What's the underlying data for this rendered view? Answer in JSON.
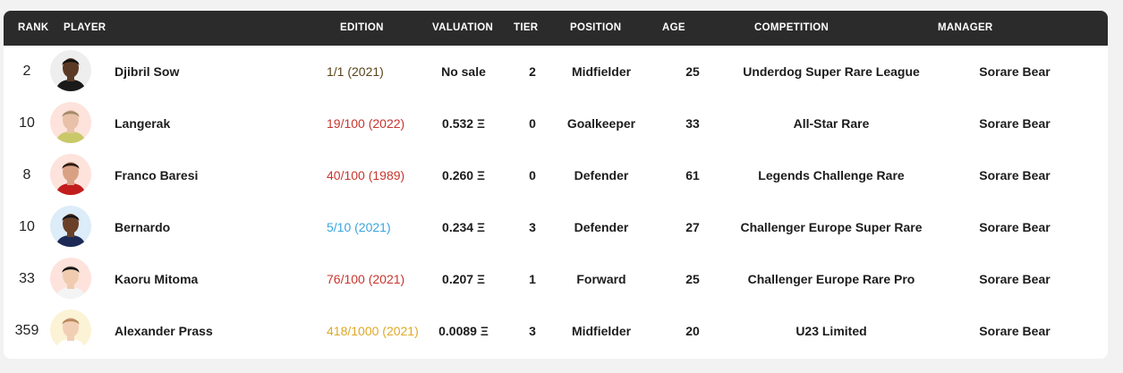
{
  "headers": {
    "rank": "RANK",
    "player": "PLAYER",
    "edition": "EDITION",
    "valuation": "VALUATION",
    "tier": "TIER",
    "position": "POSITION",
    "age": "AGE",
    "competition": "COMPETITION",
    "manager": "MANAGER"
  },
  "colors": {
    "header_bg": "#2b2b2b",
    "edition_unique": "#5a4418",
    "edition_rare": "#c8352e",
    "edition_super_rare": "#3aa5df",
    "edition_limited": "#e0a826"
  },
  "rows": [
    {
      "rank": "2",
      "player": "Djibril Sow",
      "edition": "1/1 (2021)",
      "edition_color": "#5a4418",
      "valuation": "No sale",
      "tier": "2",
      "position": "Midfielder",
      "age": "25",
      "competition": "Underdog Super Rare League",
      "manager": "Sorare Bear",
      "avatar_bg": "#eeeeee",
      "skin": "#5b3a25",
      "hair": "#111111",
      "shirt": "#1a1a1a"
    },
    {
      "rank": "10",
      "player": "Langerak",
      "edition": "19/100 (2022)",
      "edition_color": "#c8352e",
      "valuation": "0.532 Ξ",
      "tier": "0",
      "position": "Goalkeeper",
      "age": "33",
      "competition": "All-Star Rare",
      "manager": "Sorare Bear",
      "avatar_bg": "#fde3dc",
      "skin": "#e9c1a8",
      "hair": "#a58a6a",
      "shirt": "#c9c96a"
    },
    {
      "rank": "8",
      "player": "Franco Baresi",
      "edition": "40/100 (1989)",
      "edition_color": "#c8352e",
      "valuation": "0.260 Ξ",
      "tier": "0",
      "position": "Defender",
      "age": "61",
      "competition": "Legends Challenge Rare",
      "manager": "Sorare Bear",
      "avatar_bg": "#fde3dc",
      "skin": "#d9a184",
      "hair": "#2a1b12",
      "shirt": "#c21d1d"
    },
    {
      "rank": "10",
      "player": "Bernardo",
      "edition": "5/10 (2021)",
      "edition_color": "#3aa5df",
      "valuation": "0.234 Ξ",
      "tier": "3",
      "position": "Defender",
      "age": "27",
      "competition": "Challenger Europe Super Rare",
      "manager": "Sorare Bear",
      "avatar_bg": "#dcecf8",
      "skin": "#6b4028",
      "hair": "#151515",
      "shirt": "#1c2a55"
    },
    {
      "rank": "33",
      "player": "Kaoru Mitoma",
      "edition": "76/100 (2021)",
      "edition_color": "#c8352e",
      "valuation": "0.207 Ξ",
      "tier": "1",
      "position": "Forward",
      "age": "25",
      "competition": "Challenger Europe Rare Pro",
      "manager": "Sorare Bear",
      "avatar_bg": "#fde3dc",
      "skin": "#f0cbb0",
      "hair": "#141414",
      "shirt": "#f4f4f4"
    },
    {
      "rank": "359",
      "player": "Alexander Prass",
      "edition": "418/1000 (2021)",
      "edition_color": "#e0a826",
      "valuation": "0.0089 Ξ",
      "tier": "3",
      "position": "Midfielder",
      "age": "20",
      "competition": "U23 Limited",
      "manager": "Sorare Bear",
      "avatar_bg": "#fcf3d6",
      "skin": "#f1cfb5",
      "hair": "#b8895c",
      "shirt": "#ffffff"
    }
  ]
}
